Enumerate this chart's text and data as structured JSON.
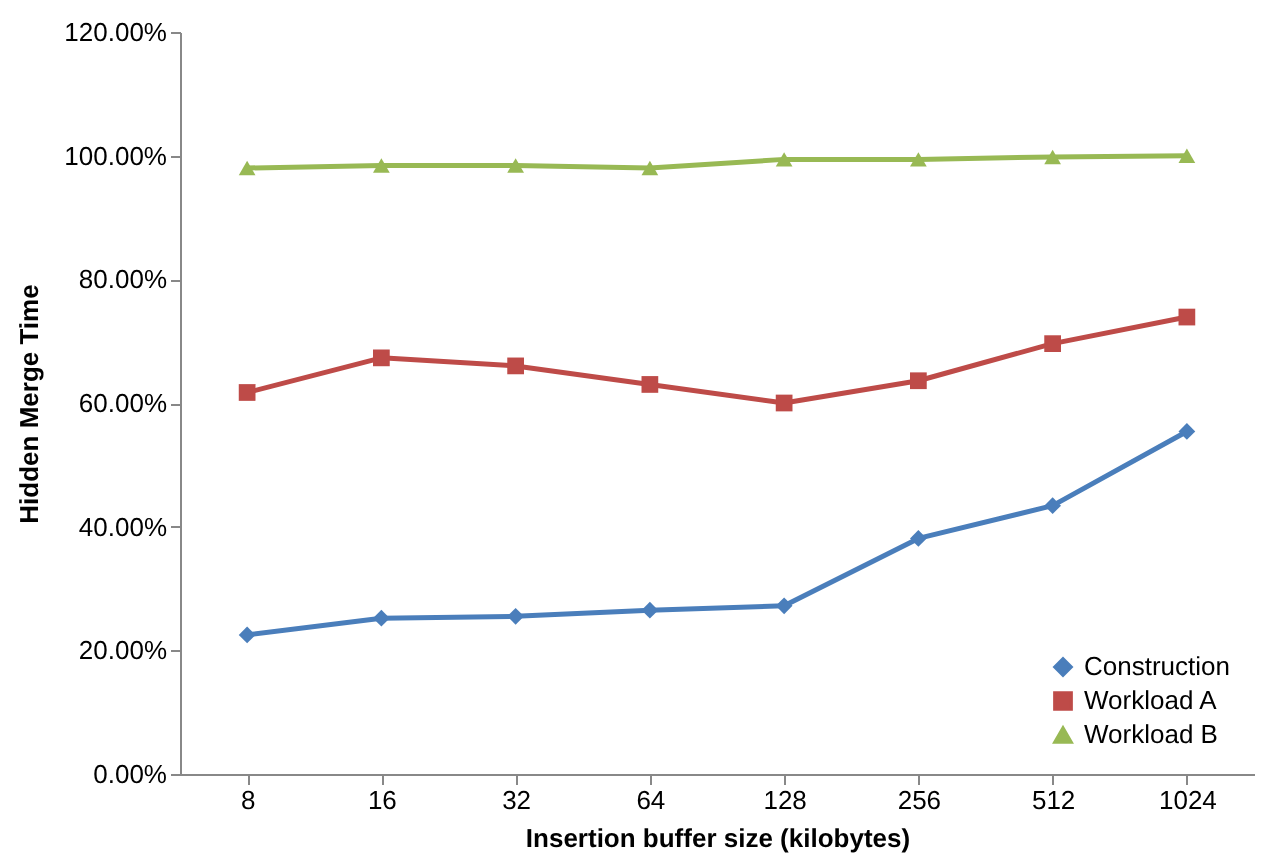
{
  "chart_data": {
    "type": "line",
    "xlabel": "Insertion buffer size (kilobytes)",
    "ylabel": "Hidden Merge Time",
    "categories": [
      "8",
      "16",
      "32",
      "64",
      "128",
      "256",
      "512",
      "1024"
    ],
    "series": [
      {
        "name": "Construction",
        "color": "#4a7ebb",
        "marker": "diamond",
        "values": [
          22.5,
          25.2,
          25.5,
          26.5,
          27.2,
          38.1,
          43.4,
          55.4
        ]
      },
      {
        "name": "Workload A",
        "color": "#be4b48",
        "marker": "square",
        "values": [
          61.7,
          67.3,
          66.0,
          63.0,
          60.0,
          63.6,
          69.6,
          73.9
        ]
      },
      {
        "name": "Workload B",
        "color": "#98b954",
        "marker": "triangle",
        "values": [
          98.0,
          98.4,
          98.4,
          98.0,
          99.4,
          99.4,
          99.8,
          100.0
        ]
      }
    ],
    "ylim": [
      0,
      120
    ],
    "yticks": [
      {
        "value": 0,
        "label": "0.00%"
      },
      {
        "value": 20,
        "label": "20.00%"
      },
      {
        "value": 40,
        "label": "40.00%"
      },
      {
        "value": 60,
        "label": "60.00%"
      },
      {
        "value": 80,
        "label": "80.00%"
      },
      {
        "value": 100,
        "label": "100.00%"
      },
      {
        "value": 120,
        "label": "120.00%"
      }
    ],
    "grid": false,
    "legend": "bottom right",
    "line_style": "solid"
  }
}
